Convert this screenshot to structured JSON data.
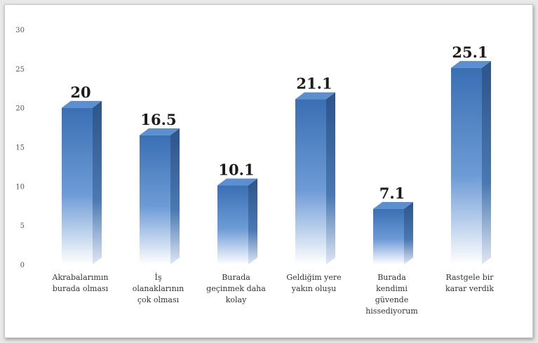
{
  "chart_data": {
    "type": "bar",
    "title": "",
    "xlabel": "",
    "ylabel": "",
    "ylim": [
      0,
      30
    ],
    "yticks": [
      0,
      5,
      10,
      15,
      20,
      25,
      30
    ],
    "grid": false,
    "legend": "none",
    "categories": [
      [
        "Akrabalarımın",
        "burada olması"
      ],
      [
        "İş",
        "olanaklarının",
        "çok olması"
      ],
      [
        "Burada",
        "geçinmek daha",
        "kolay"
      ],
      [
        "Geldiğim yere",
        "yakın oluşu"
      ],
      [
        "Burada",
        "kendimi",
        "güvende",
        "hissediyorum"
      ],
      [
        "Rastgele bir",
        "karar verdik"
      ]
    ],
    "values": [
      20,
      16.5,
      10.1,
      21.1,
      7.1,
      25.1
    ],
    "data_labels": [
      "20",
      "16.5",
      "10.1",
      "21.1",
      "7.1",
      "25.1"
    ],
    "colors": {
      "bar_top": "#3a6fb4",
      "bar_bottom": "#ffffff",
      "bar_side": "#2c5588",
      "bar_cap": "#5b8fd0"
    }
  }
}
